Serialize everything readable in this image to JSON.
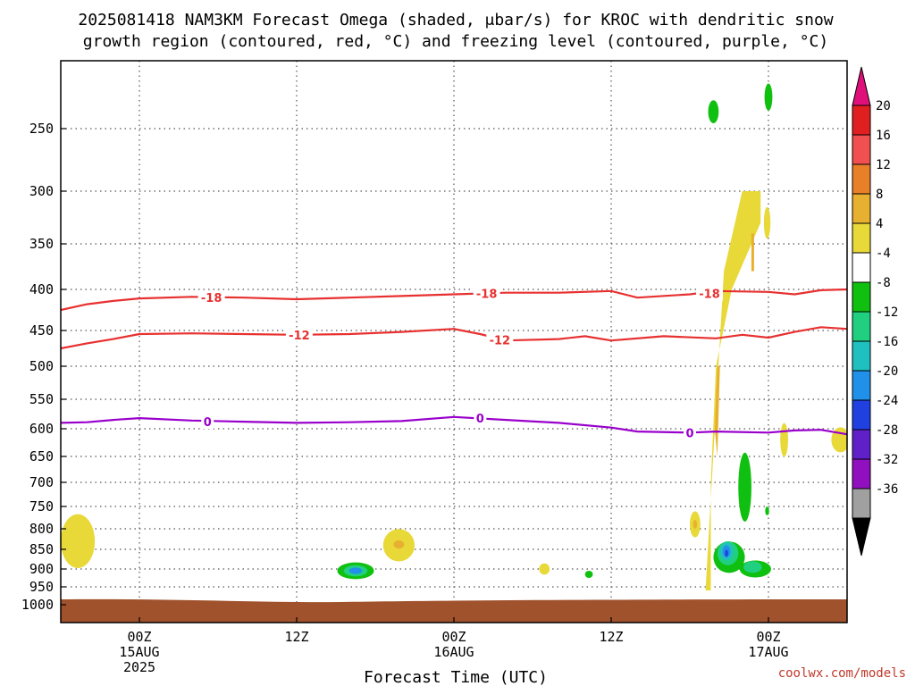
{
  "chart_data": {
    "type": "heatmap",
    "title_lines": [
      "2025081418 NAM3KM Forecast Omega (shaded, μbar/s) for KROC with dendritic snow",
      "growth region (contoured, red, °C) and freezing level (contoured, purple, °C)"
    ],
    "xlabel": "Forecast Time (UTC)",
    "xlim_hours": [
      -6,
      54
    ],
    "y_ticks": [
      250,
      300,
      350,
      400,
      450,
      500,
      550,
      600,
      650,
      700,
      750,
      800,
      850,
      900,
      950,
      1000
    ],
    "y_range_hpa": [
      200,
      1000
    ],
    "y_scale": "log-pressure (inverted)",
    "x_ticks": [
      {
        "hour": 0,
        "lines": [
          "00Z",
          "15AUG",
          "2025"
        ]
      },
      {
        "hour": 12,
        "lines": [
          "12Z"
        ]
      },
      {
        "hour": 24,
        "lines": [
          "00Z",
          "16AUG"
        ]
      },
      {
        "hour": 36,
        "lines": [
          "12Z"
        ]
      },
      {
        "hour": 48,
        "lines": [
          "00Z",
          "17AUG"
        ]
      }
    ],
    "grid": true,
    "colorbar": {
      "labels": [
        "20",
        "16",
        "12",
        "8",
        "4",
        "-4",
        "-8",
        "-12",
        "-16",
        "-20",
        "-24",
        "-28",
        "-32",
        "-36"
      ],
      "bins": [
        {
          "color": "#e02020"
        },
        {
          "color": "#f05050"
        },
        {
          "color": "#e8802a"
        },
        {
          "color": "#e8b030"
        },
        {
          "color": "#e8d838"
        },
        {
          "color": "#ffffff"
        },
        {
          "color": "#10c010"
        },
        {
          "color": "#20d080"
        },
        {
          "color": "#20c0c0"
        },
        {
          "color": "#2090e8"
        },
        {
          "color": "#2040e0"
        },
        {
          "color": "#6020c8"
        },
        {
          "color": "#9010c0"
        },
        {
          "color": "#a0a0a0"
        }
      ],
      "top_triangle_color": "#e0107a",
      "bottom_triangle_color": "#000000"
    },
    "contours": [
      {
        "label": "-18",
        "color": "#e83030",
        "points": [
          [
            -6,
            425
          ],
          [
            -4,
            418
          ],
          [
            -2,
            414
          ],
          [
            0,
            411
          ],
          [
            4,
            409
          ],
          [
            8,
            410
          ],
          [
            12,
            412
          ],
          [
            16,
            410
          ],
          [
            20,
            408
          ],
          [
            24,
            406
          ],
          [
            28,
            404
          ],
          [
            32,
            404
          ],
          [
            36,
            402
          ],
          [
            38,
            410
          ],
          [
            42,
            406
          ],
          [
            44,
            402
          ],
          [
            48,
            403
          ],
          [
            50,
            406
          ],
          [
            52,
            401
          ],
          [
            54,
            400
          ]
        ]
      },
      {
        "label": "-12",
        "color": "#e83030",
        "points": [
          [
            -6,
            475
          ],
          [
            -4,
            468
          ],
          [
            -2,
            462
          ],
          [
            0,
            455
          ],
          [
            4,
            454
          ],
          [
            8,
            455
          ],
          [
            12,
            456
          ],
          [
            16,
            455
          ],
          [
            20,
            452
          ],
          [
            24,
            448
          ],
          [
            26,
            455
          ],
          [
            28,
            464
          ],
          [
            32,
            462
          ],
          [
            34,
            458
          ],
          [
            36,
            464
          ],
          [
            40,
            458
          ],
          [
            44,
            461
          ],
          [
            46,
            456
          ],
          [
            48,
            460
          ],
          [
            50,
            452
          ],
          [
            52,
            446
          ],
          [
            54,
            448
          ]
        ]
      },
      {
        "label": "0",
        "color": "#9900cc",
        "points": [
          [
            -6,
            590
          ],
          [
            -4,
            589
          ],
          [
            -2,
            585
          ],
          [
            0,
            582
          ],
          [
            4,
            586
          ],
          [
            8,
            588
          ],
          [
            12,
            590
          ],
          [
            16,
            589
          ],
          [
            20,
            587
          ],
          [
            24,
            580
          ],
          [
            28,
            585
          ],
          [
            32,
            590
          ],
          [
            36,
            598
          ],
          [
            38,
            605
          ],
          [
            42,
            607
          ],
          [
            44,
            605
          ],
          [
            48,
            607
          ],
          [
            50,
            603
          ],
          [
            52,
            602
          ],
          [
            54,
            610
          ]
        ]
      }
    ],
    "contour_labels": [
      {
        "text": "-18",
        "hour": 5.5,
        "hpa": 410
      },
      {
        "text": "-18",
        "hour": 26.5,
        "hpa": 405
      },
      {
        "text": "-18",
        "hour": 43.5,
        "hpa": 405
      },
      {
        "text": "-12",
        "hour": 12.2,
        "hpa": 456
      },
      {
        "text": "-12",
        "hour": 27.5,
        "hpa": 463
      },
      {
        "text": "0",
        "hour": 5.2,
        "hpa": 588
      },
      {
        "text": "0",
        "hour": 26.0,
        "hpa": 582
      },
      {
        "text": "0",
        "hour": 42.0,
        "hpa": 607
      }
    ],
    "omega_features": [
      {
        "value": 6,
        "color": "#e8d838",
        "hour": -4.7,
        "hpa": 830,
        "wh": 1.3,
        "hh": 130
      },
      {
        "value": 6,
        "color": "#e8d838",
        "hour": 19.8,
        "hpa": 840,
        "wh": 1.2,
        "hh": 80
      },
      {
        "value": 10,
        "color": "#e8b030",
        "hour": 19.8,
        "hpa": 838,
        "wh": 0.4,
        "hh": 20
      },
      {
        "value": -10,
        "color": "#10c010",
        "hour": 16.5,
        "hpa": 905,
        "wh": 1.4,
        "hh": 45
      },
      {
        "value": -14,
        "color": "#20d080",
        "hour": 16.5,
        "hpa": 905,
        "wh": 0.9,
        "hh": 30
      },
      {
        "value": -18,
        "color": "#2090e8",
        "hour": 16.5,
        "hpa": 905,
        "wh": 0.5,
        "hh": 18
      },
      {
        "value": 6,
        "color": "#e8d838",
        "hour": 30.9,
        "hpa": 900,
        "wh": 0.4,
        "hh": 30
      },
      {
        "value": -6,
        "color": "#10c010",
        "hour": 34.3,
        "hpa": 915,
        "wh": 0.3,
        "hh": 20
      },
      {
        "value": 6,
        "color": "#e8d838",
        "hour": 42.4,
        "hpa": 790,
        "wh": 0.4,
        "hh": 60
      },
      {
        "value": 10,
        "color": "#e8b030",
        "hour": 42.4,
        "hpa": 790,
        "wh": 0.15,
        "hh": 20
      },
      {
        "value": -6,
        "color": "#10c010",
        "hour": 43.8,
        "hpa": 238,
        "wh": 0.4,
        "hh": 16
      },
      {
        "value": -6,
        "color": "#10c010",
        "hour": 48.0,
        "hpa": 228,
        "wh": 0.3,
        "hh": 18
      },
      {
        "value": 6,
        "color": "#e8d838",
        "hour": 47.9,
        "hpa": 330,
        "wh": 0.25,
        "hh": 30
      },
      {
        "value": 6,
        "color": "#e8d838",
        "hour": 49.2,
        "hpa": 620,
        "wh": 0.3,
        "hh": 60
      },
      {
        "value": 6,
        "color": "#e8d838",
        "hour": 53.5,
        "hpa": 620,
        "wh": 0.7,
        "hh": 45
      },
      {
        "value": -6,
        "color": "#10c010",
        "hour": 47.9,
        "hpa": 760,
        "wh": 0.15,
        "hh": 20
      },
      {
        "value": -10,
        "color": "#10c010",
        "hour": 46.2,
        "hpa": 710,
        "wh": 0.5,
        "hh": 140
      },
      {
        "value": -10,
        "color": "#10c010",
        "hour": 45.0,
        "hpa": 870,
        "wh": 1.2,
        "hh": 80
      },
      {
        "value": -14,
        "color": "#20d080",
        "hour": 44.9,
        "hpa": 860,
        "wh": 0.8,
        "hh": 60
      },
      {
        "value": -18,
        "color": "#20c0c0",
        "hour": 44.8,
        "hpa": 855,
        "wh": 0.5,
        "hh": 45
      },
      {
        "value": -22,
        "color": "#2090e8",
        "hour": 44.8,
        "hpa": 855,
        "wh": 0.3,
        "hh": 30
      },
      {
        "value": -26,
        "color": "#2040e0",
        "hour": 44.8,
        "hpa": 860,
        "wh": 0.12,
        "hh": 18
      },
      {
        "value": -10,
        "color": "#10c010",
        "hour": 47.0,
        "hpa": 900,
        "wh": 1.2,
        "hh": 45
      },
      {
        "value": -14,
        "color": "#20d080",
        "hour": 46.8,
        "hpa": 895,
        "wh": 0.7,
        "hh": 30
      }
    ],
    "omega_columns": [
      {
        "value": 6,
        "color": "#e8d838",
        "points": [
          [
            43.2,
            960
          ],
          [
            44.6,
            380
          ],
          [
            46.0,
            300
          ],
          [
            47.4,
            300
          ],
          [
            47.4,
            330
          ],
          [
            45.2,
            400
          ],
          [
            44.0,
            500
          ],
          [
            43.6,
            700
          ],
          [
            43.6,
            960
          ]
        ]
      },
      {
        "value": 10,
        "color": "#e8b030",
        "points": [
          [
            43.9,
            600
          ],
          [
            44.1,
            500
          ],
          [
            44.3,
            500
          ],
          [
            44.1,
            650
          ]
        ]
      },
      {
        "value": 10,
        "color": "#e8b030",
        "points": [
          [
            46.7,
            340
          ],
          [
            46.9,
            340
          ],
          [
            46.9,
            380
          ],
          [
            46.7,
            380
          ]
        ]
      }
    ],
    "ground_color": "#a0522d",
    "ground_top_hpa": 985
  },
  "credit": "coolwx.com/models"
}
